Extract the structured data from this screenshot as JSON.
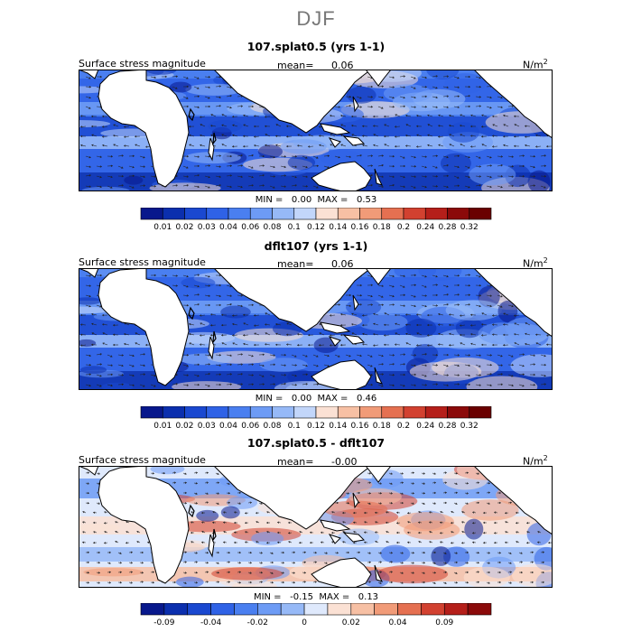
{
  "figure": {
    "title": "DJF"
  },
  "chart_data": [
    {
      "type": "heatmap",
      "title": "107.splat0.5 (yrs 1-1)",
      "field_label": "Surface stress magnitude",
      "mean_label": "mean=",
      "mean_value": "0.06",
      "units": "N/m",
      "units_exp": "2",
      "min_label": "MIN =",
      "min_value": "0.00",
      "max_label": "MAX =",
      "max_value": "0.53",
      "color_levels": [
        "0.01",
        "0.02",
        "0.03",
        "0.04",
        "0.06",
        "0.08",
        "0.1",
        "0.12",
        "0.14",
        "0.16",
        "0.18",
        "0.2",
        "0.24",
        "0.28",
        "0.32"
      ],
      "colors": [
        "#08188c",
        "#0b2fae",
        "#1a48d0",
        "#2f62e6",
        "#4a7ff0",
        "#6d9bf5",
        "#96b9f7",
        "#c2d6fa",
        "#fbe1d4",
        "#f7c0a4",
        "#f19b78",
        "#e57051",
        "#d24130",
        "#b51f1a",
        "#8b0a0a",
        "#6a0000"
      ]
    },
    {
      "type": "heatmap",
      "title": "dflt107 (yrs 1-1)",
      "field_label": "Surface stress magnitude",
      "mean_label": "mean=",
      "mean_value": "0.06",
      "units": "N/m",
      "units_exp": "2",
      "min_label": "MIN =",
      "min_value": "0.00",
      "max_label": "MAX =",
      "max_value": "0.46",
      "color_levels": [
        "0.01",
        "0.02",
        "0.03",
        "0.04",
        "0.06",
        "0.08",
        "0.1",
        "0.12",
        "0.14",
        "0.16",
        "0.18",
        "0.2",
        "0.24",
        "0.28",
        "0.32"
      ],
      "colors": [
        "#08188c",
        "#0b2fae",
        "#1a48d0",
        "#2f62e6",
        "#4a7ff0",
        "#6d9bf5",
        "#96b9f7",
        "#c2d6fa",
        "#fbe1d4",
        "#f7c0a4",
        "#f19b78",
        "#e57051",
        "#d24130",
        "#b51f1a",
        "#8b0a0a",
        "#6a0000"
      ]
    },
    {
      "type": "heatmap",
      "title": "107.splat0.5 - dflt107",
      "field_label": "Surface stress magnitude",
      "mean_label": "mean=",
      "mean_value": "-0.00",
      "units": "N/m",
      "units_exp": "2",
      "min_label": "MIN =",
      "min_value": "-0.15",
      "max_label": "MAX =",
      "max_value": "0.13",
      "color_levels": [
        "-0.09",
        "",
        "-0.04",
        "",
        "-0.02",
        "",
        "0",
        "",
        "0.02",
        "",
        "0.04",
        "",
        "0.09",
        ""
      ],
      "colors": [
        "#08188c",
        "#0b2fae",
        "#1a48d0",
        "#2f62e6",
        "#4a7ff0",
        "#6d9bf5",
        "#96b9f7",
        "#dfe9fc",
        "#fbe1d4",
        "#f7c0a4",
        "#f19b78",
        "#e57051",
        "#d24130",
        "#b51f1a",
        "#8b0a0a"
      ]
    }
  ]
}
